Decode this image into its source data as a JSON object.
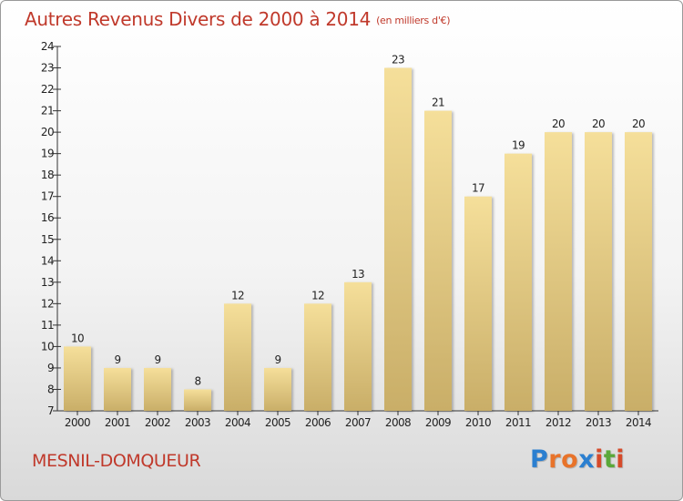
{
  "title": "Autres Revenus Divers de 2000 à 2014",
  "subtitle": "(en milliers d'€)",
  "commune": "MESNIL-DOMQUEUR",
  "logo": {
    "letters": [
      "P",
      "r",
      "o",
      "x",
      "i",
      "t",
      "i"
    ],
    "colors": [
      "#2b7fd0",
      "#e8732a",
      "#e8732a",
      "#2b7fd0",
      "#d64a2a",
      "#5aa83a",
      "#d64a2a"
    ]
  },
  "colors": {
    "title": "#c0392b",
    "bar_top": "#f5df9a",
    "bar_bottom": "#c9ae68",
    "axis": "#333333"
  },
  "chart_data": {
    "type": "bar",
    "categories": [
      "2000",
      "2001",
      "2002",
      "2003",
      "2004",
      "2005",
      "2006",
      "2007",
      "2008",
      "2009",
      "2010",
      "2011",
      "2012",
      "2013",
      "2014"
    ],
    "values": [
      10,
      9,
      9,
      8,
      12,
      9,
      12,
      13,
      23,
      21,
      17,
      19,
      20,
      20,
      20
    ],
    "data_labels": [
      "10",
      "9",
      "9",
      "8",
      "12",
      "9",
      "12",
      "13",
      "23",
      "21",
      "17",
      "19",
      "20",
      "20",
      "20"
    ],
    "yticks": [
      "7",
      "8",
      "9",
      "10",
      "11",
      "12",
      "13",
      "14",
      "15",
      "16",
      "17",
      "18",
      "19",
      "20",
      "21",
      "22",
      "23",
      "24"
    ],
    "ylim": [
      7,
      24
    ],
    "grid": false,
    "legend": "none"
  }
}
